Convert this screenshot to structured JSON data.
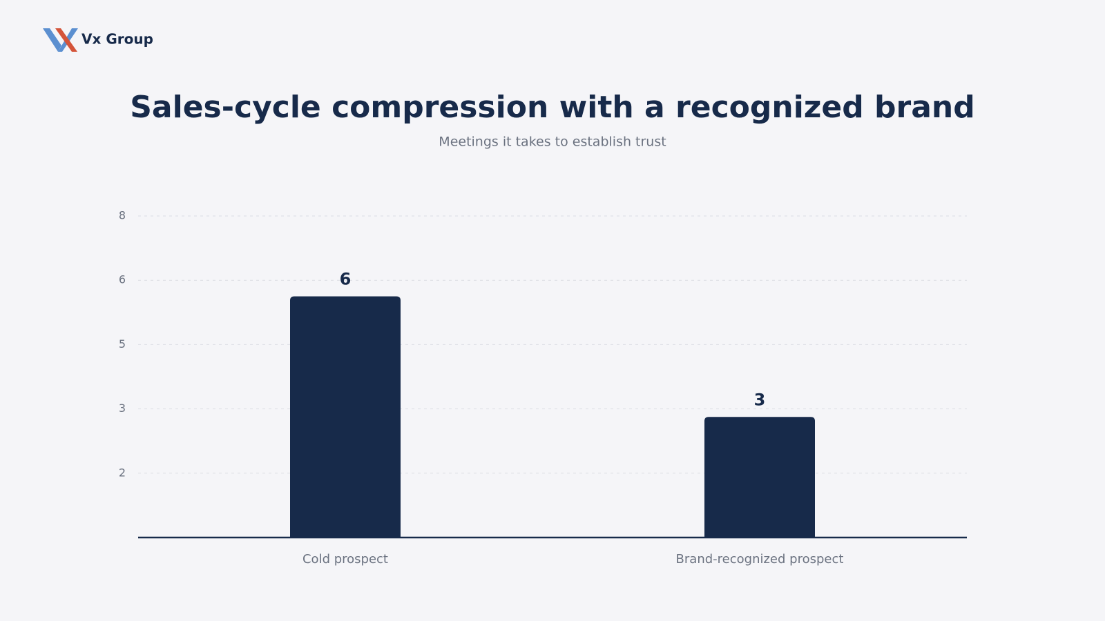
{
  "brand": "Vx Group",
  "chart_data": {
    "type": "bar",
    "title": "Sales-cycle compression with a recognized brand",
    "subtitle": "Meetings it takes to establish trust",
    "categories": [
      "Cold prospect",
      "Brand-recognized prospect"
    ],
    "values": [
      6,
      3
    ],
    "color": "#172a4a",
    "ylim": [
      0,
      8
    ],
    "yticks": [
      {
        "value": 1.6,
        "label": "2"
      },
      {
        "value": 3.2,
        "label": "3"
      },
      {
        "value": 4.8,
        "label": "5"
      },
      {
        "value": 6.4,
        "label": "6"
      },
      8
    ],
    "grid": true
  }
}
